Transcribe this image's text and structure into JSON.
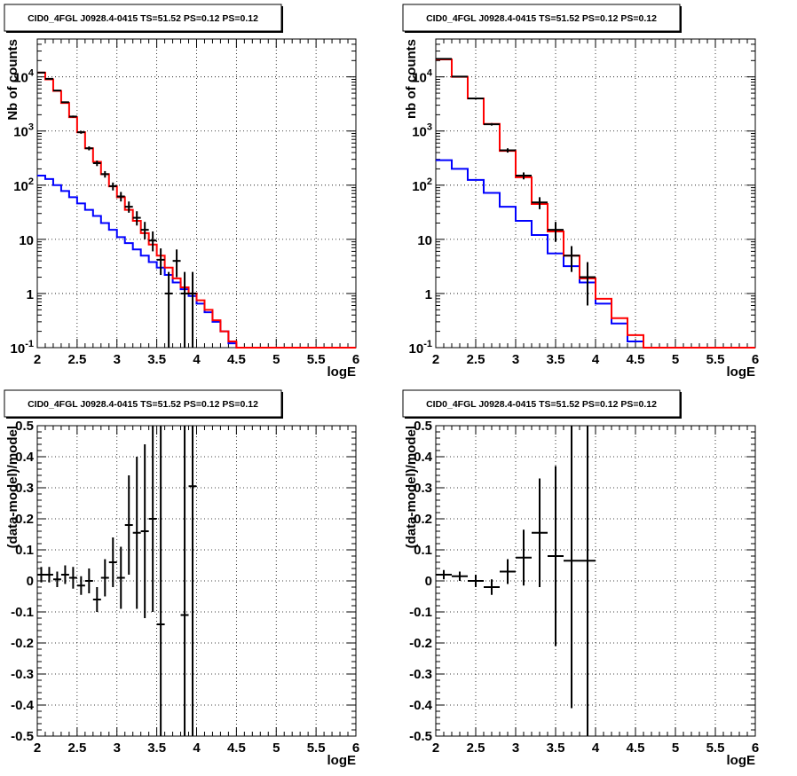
{
  "chart_data": [
    {
      "type": "line",
      "title": "CID0_4FGL J0928.4-0415 TS=51.52 PS=0.12 PS=0.12",
      "xlabel": "logE",
      "ylabel": "Nb of counts",
      "xlim": [
        2,
        6
      ],
      "ylim": [
        0.1,
        50000
      ],
      "yscale": "log",
      "grid": true,
      "x_ticks": [
        "2",
        "2.5",
        "3",
        "3.5",
        "4",
        "4.5",
        "5",
        "5.5",
        "6"
      ],
      "y_ticks": [
        "10^-1",
        "1",
        "10",
        "10^2",
        "10^3",
        "10^4"
      ],
      "bin_edges": [
        2.0,
        2.1,
        2.2,
        2.3,
        2.4,
        2.5,
        2.6,
        2.7,
        2.8,
        2.9,
        3.0,
        3.1,
        3.2,
        3.3,
        3.4,
        3.5,
        3.6,
        3.7,
        3.8,
        3.9,
        4.0,
        4.1,
        4.2,
        4.3,
        4.4,
        4.5,
        4.6,
        4.7,
        4.8,
        4.9,
        5.0,
        5.1,
        5.2,
        5.3,
        5.4,
        5.5,
        5.6,
        5.7,
        5.8,
        5.9,
        6.0
      ],
      "series": [
        {
          "color": "#0000ff",
          "style": "step",
          "values": [
            150,
            130,
            100,
            78,
            60,
            46,
            35,
            27,
            20,
            15,
            11,
            8.5,
            6.5,
            5,
            3.8,
            3,
            2.2,
            1.6,
            1.2,
            0.9,
            0.65,
            0.45,
            0.3,
            0.2,
            0.12,
            0.1,
            0.1,
            0.1,
            0.1,
            0.1,
            0.1,
            0.1,
            0.1,
            0.1,
            0.1,
            0.1,
            0.1,
            0.1,
            0.1,
            0.1
          ]
        },
        {
          "color": "#ff0000",
          "style": "step",
          "values": [
            12000,
            9000,
            5500,
            3300,
            1800,
            950,
            480,
            270,
            160,
            95,
            60,
            35,
            22,
            13,
            8,
            5,
            3,
            1.9,
            1.3,
            1.0,
            0.75,
            0.5,
            0.32,
            0.2,
            0.13,
            0.1,
            0.1,
            0.1,
            0.1,
            0.1,
            0.1,
            0.1,
            0.1,
            0.1,
            0.1,
            0.1,
            0.1,
            0.1,
            0.1,
            0.1
          ]
        },
        {
          "color": "#000000",
          "style": "errorbar",
          "points": [
            {
              "x": 2.05,
              "y": 12000,
              "lo": 11800,
              "hi": 12200
            },
            {
              "x": 2.15,
              "y": 9200,
              "lo": 9000,
              "hi": 9400
            },
            {
              "x": 2.25,
              "y": 5600,
              "lo": 5450,
              "hi": 5750
            },
            {
              "x": 2.35,
              "y": 3400,
              "lo": 3300,
              "hi": 3500
            },
            {
              "x": 2.45,
              "y": 1850,
              "lo": 1770,
              "hi": 1930
            },
            {
              "x": 2.55,
              "y": 950,
              "lo": 890,
              "hi": 1010
            },
            {
              "x": 2.65,
              "y": 480,
              "lo": 440,
              "hi": 520
            },
            {
              "x": 2.75,
              "y": 255,
              "lo": 225,
              "hi": 285
            },
            {
              "x": 2.85,
              "y": 160,
              "lo": 138,
              "hi": 182
            },
            {
              "x": 2.95,
              "y": 96,
              "lo": 80,
              "hi": 112
            },
            {
              "x": 3.05,
              "y": 62,
              "lo": 50,
              "hi": 75
            },
            {
              "x": 3.15,
              "y": 40,
              "lo": 31,
              "hi": 50
            },
            {
              "x": 3.25,
              "y": 25,
              "lo": 18,
              "hi": 33
            },
            {
              "x": 3.35,
              "y": 15,
              "lo": 10,
              "hi": 21
            },
            {
              "x": 3.45,
              "y": 9.5,
              "lo": 6,
              "hi": 14
            },
            {
              "x": 3.55,
              "y": 4.2,
              "lo": 2.2,
              "hi": 6.8
            },
            {
              "x": 3.65,
              "y": 1,
              "lo": 0.1,
              "hi": 2.5
            },
            {
              "x": 3.75,
              "y": 4,
              "lo": 2,
              "hi": 6.5
            },
            {
              "x": 3.85,
              "y": 1,
              "lo": 0.1,
              "hi": 2.5
            },
            {
              "x": 3.95,
              "y": 1,
              "lo": 0.1,
              "hi": 2.5
            }
          ]
        }
      ]
    },
    {
      "type": "line",
      "title": "CID0_4FGL J0928.4-0415 TS=51.52 PS=0.12 PS=0.12",
      "xlabel": "logE",
      "ylabel": "nb of counts",
      "xlim": [
        2,
        6
      ],
      "ylim": [
        0.1,
        50000
      ],
      "yscale": "log",
      "grid": true,
      "x_ticks": [
        "2",
        "2.5",
        "3",
        "3.5",
        "4",
        "4.5",
        "5",
        "5.5",
        "6"
      ],
      "y_ticks": [
        "10^-1",
        "1",
        "10",
        "10^2",
        "10^3",
        "10^4"
      ],
      "bin_edges": [
        2.0,
        2.2,
        2.4,
        2.6,
        2.8,
        3.0,
        3.2,
        3.4,
        3.6,
        3.8,
        4.0,
        4.2,
        4.4,
        4.6,
        4.8,
        5.0,
        5.2,
        5.4,
        5.6,
        5.8,
        6.0
      ],
      "series": [
        {
          "color": "#0000ff",
          "style": "step",
          "values": [
            290,
            200,
            125,
            72,
            40,
            22,
            12,
            5.5,
            3.2,
            1.6,
            0.65,
            0.28,
            0.13,
            0.1,
            0.1,
            0.1,
            0.1,
            0.1,
            0.1,
            0.1
          ]
        },
        {
          "color": "#ff0000",
          "style": "step",
          "values": [
            21000,
            10000,
            4000,
            1350,
            430,
            140,
            45,
            14,
            5,
            1.9,
            0.8,
            0.35,
            0.17,
            0.1,
            0.1,
            0.1,
            0.1,
            0.1,
            0.1,
            0.1
          ]
        },
        {
          "color": "#000000",
          "style": "errorbar",
          "points": [
            {
              "x": 2.1,
              "y": 21500,
              "lo": 21200,
              "hi": 21800
            },
            {
              "x": 2.3,
              "y": 10100,
              "lo": 9900,
              "hi": 10300
            },
            {
              "x": 2.5,
              "y": 4000,
              "lo": 3880,
              "hi": 4120
            },
            {
              "x": 2.7,
              "y": 1330,
              "lo": 1260,
              "hi": 1400
            },
            {
              "x": 2.9,
              "y": 440,
              "lo": 400,
              "hi": 480
            },
            {
              "x": 3.1,
              "y": 150,
              "lo": 128,
              "hi": 172
            },
            {
              "x": 3.3,
              "y": 48,
              "lo": 36,
              "hi": 60
            },
            {
              "x": 3.5,
              "y": 15,
              "lo": 9,
              "hi": 21
            },
            {
              "x": 3.7,
              "y": 5,
              "lo": 2.5,
              "hi": 7.5
            },
            {
              "x": 3.9,
              "y": 2,
              "lo": 0.6,
              "hi": 3.8
            }
          ]
        }
      ]
    },
    {
      "type": "scatter",
      "title": "CID0_4FGL J0928.4-0415 TS=51.52 PS=0.12 PS=0.12",
      "xlabel": "logE",
      "ylabel": "(data-model)/model",
      "xlim": [
        2,
        6
      ],
      "ylim": [
        -0.5,
        0.5
      ],
      "grid": true,
      "x_ticks": [
        "2",
        "2.5",
        "3",
        "3.5",
        "4",
        "4.5",
        "5",
        "5.5",
        "6"
      ],
      "y_ticks": [
        "-0.5",
        "-0.4",
        "-0.3",
        "-0.2",
        "-0.1",
        "0",
        "0.1",
        "0.2",
        "0.3",
        "0.4",
        "0.5"
      ],
      "series": [
        {
          "color": "#000000",
          "style": "errorbar",
          "xerr": 0.05,
          "points": [
            {
              "x": 2.05,
              "y": 0.02,
              "lo": -0.005,
              "hi": 0.045
            },
            {
              "x": 2.15,
              "y": 0.02,
              "lo": -0.005,
              "hi": 0.045
            },
            {
              "x": 2.25,
              "y": 0.005,
              "lo": -0.02,
              "hi": 0.03
            },
            {
              "x": 2.35,
              "y": 0.02,
              "lo": -0.01,
              "hi": 0.05
            },
            {
              "x": 2.45,
              "y": 0.01,
              "lo": -0.025,
              "hi": 0.045
            },
            {
              "x": 2.55,
              "y": -0.015,
              "lo": -0.045,
              "hi": 0.015
            },
            {
              "x": 2.65,
              "y": 0,
              "lo": -0.04,
              "hi": 0.04
            },
            {
              "x": 2.75,
              "y": -0.06,
              "lo": -0.1,
              "hi": -0.02
            },
            {
              "x": 2.85,
              "y": 0.01,
              "lo": -0.05,
              "hi": 0.07
            },
            {
              "x": 2.95,
              "y": 0.06,
              "lo": -0.02,
              "hi": 0.14
            },
            {
              "x": 3.05,
              "y": 0.01,
              "lo": -0.09,
              "hi": 0.11
            },
            {
              "x": 3.15,
              "y": 0.18,
              "lo": 0.02,
              "hi": 0.34
            },
            {
              "x": 3.25,
              "y": 0.155,
              "lo": -0.09,
              "hi": 0.4
            },
            {
              "x": 3.35,
              "y": 0.16,
              "lo": -0.12,
              "hi": 0.44
            },
            {
              "x": 3.45,
              "y": 0.2,
              "lo": -0.1,
              "hi": 0.5
            },
            {
              "x": 3.55,
              "y": -0.14,
              "lo": -0.5,
              "hi": 0.5
            },
            {
              "x": 3.85,
              "y": -0.11,
              "lo": -0.5,
              "hi": 0.5
            },
            {
              "x": 3.95,
              "y": 0.305,
              "lo": -0.5,
              "hi": 0.5
            }
          ]
        }
      ]
    },
    {
      "type": "scatter",
      "title": "CID0_4FGL J0928.4-0415 TS=51.52 PS=0.12 PS=0.12",
      "xlabel": "logE",
      "ylabel": "(data-model)/model",
      "xlim": [
        2,
        6
      ],
      "ylim": [
        -0.5,
        0.5
      ],
      "grid": true,
      "x_ticks": [
        "2",
        "2.5",
        "3",
        "3.5",
        "4",
        "4.5",
        "5",
        "5.5",
        "6"
      ],
      "y_ticks": [
        "-0.5",
        "-0.4",
        "-0.3",
        "-0.2",
        "-0.1",
        "0",
        "0.1",
        "0.2",
        "0.3",
        "0.4",
        "0.5"
      ],
      "series": [
        {
          "color": "#000000",
          "style": "errorbar",
          "xerr": 0.1,
          "points": [
            {
              "x": 2.1,
              "y": 0.02,
              "lo": 0.005,
              "hi": 0.035
            },
            {
              "x": 2.3,
              "y": 0.015,
              "lo": 0,
              "hi": 0.03
            },
            {
              "x": 2.5,
              "y": 0,
              "lo": -0.02,
              "hi": 0.02
            },
            {
              "x": 2.7,
              "y": -0.02,
              "lo": -0.045,
              "hi": 0.005
            },
            {
              "x": 2.9,
              "y": 0.03,
              "lo": -0.01,
              "hi": 0.07
            },
            {
              "x": 3.1,
              "y": 0.075,
              "lo": -0.015,
              "hi": 0.165
            },
            {
              "x": 3.3,
              "y": 0.155,
              "lo": -0.02,
              "hi": 0.33
            },
            {
              "x": 3.5,
              "y": 0.08,
              "lo": -0.21,
              "hi": 0.37
            },
            {
              "x": 3.7,
              "y": 0.065,
              "lo": -0.41,
              "hi": 0.5
            },
            {
              "x": 3.9,
              "y": 0.065,
              "lo": -0.5,
              "hi": 0.5
            }
          ]
        }
      ]
    }
  ]
}
